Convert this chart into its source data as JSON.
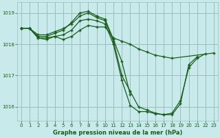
{
  "background_color": "#c8eaea",
  "grid_color": "#9bbdbd",
  "line_color": "#1a5c1a",
  "title": "Graphe pression niveau de la mer (hPa)",
  "xlim": [
    -0.5,
    23.5
  ],
  "ylim": [
    1015.55,
    1019.35
  ],
  "yticks": [
    1016,
    1017,
    1018,
    1019
  ],
  "xticks": [
    0,
    1,
    2,
    3,
    4,
    5,
    6,
    7,
    8,
    9,
    10,
    11,
    12,
    13,
    14,
    15,
    16,
    17,
    18,
    19,
    20,
    21,
    22,
    23
  ],
  "series": [
    {
      "x": [
        0,
        1,
        2,
        3,
        4,
        5,
        6,
        7,
        8,
        9,
        10,
        11,
        12,
        13,
        14,
        15,
        16,
        17,
        18,
        19,
        20,
        21,
        22
      ],
      "y": [
        1018.5,
        1018.5,
        1018.3,
        1018.3,
        1018.4,
        1018.5,
        1018.65,
        1018.9,
        1019.0,
        1018.85,
        1018.75,
        1018.1,
        1017.0,
        1016.5,
        1016.0,
        1015.9,
        1015.8,
        1015.75,
        1015.8,
        1016.2,
        1017.25,
        1017.55,
        1017.7
      ]
    },
    {
      "x": [
        0,
        1,
        2,
        3,
        4,
        5,
        6,
        7,
        8,
        9,
        10,
        11,
        12,
        13
      ],
      "y": [
        1018.5,
        1018.5,
        1018.25,
        1018.25,
        1018.35,
        1018.45,
        1018.7,
        1019.0,
        1019.05,
        1018.9,
        1018.8,
        1018.15,
        1017.45,
        1016.4
      ]
    },
    {
      "x": [
        0,
        1,
        2,
        3,
        4,
        5,
        6,
        7,
        8,
        9,
        10,
        11,
        12,
        13,
        14,
        15,
        16,
        17,
        18,
        19,
        20,
        21
      ],
      "y": [
        1018.5,
        1018.5,
        1018.2,
        1018.2,
        1018.25,
        1018.3,
        1018.45,
        1018.75,
        1018.8,
        1018.75,
        1018.65,
        1018.0,
        1016.85,
        1016.05,
        1015.85,
        1015.85,
        1015.78,
        1015.75,
        1015.75,
        1016.1,
        1017.35,
        1017.6
      ]
    },
    {
      "x": [
        0,
        1,
        2,
        3,
        4,
        5,
        6,
        7,
        8,
        9,
        10,
        11,
        12,
        13,
        14,
        15,
        16,
        17,
        18,
        23
      ],
      "y": [
        1018.5,
        1018.5,
        1018.2,
        1018.15,
        1018.25,
        1018.15,
        1018.25,
        1018.45,
        1018.6,
        1018.55,
        1018.55,
        1018.2,
        1018.1,
        1018.0,
        1017.85,
        1017.75,
        1017.65,
        1017.6,
        1017.55,
        1017.72
      ]
    }
  ]
}
